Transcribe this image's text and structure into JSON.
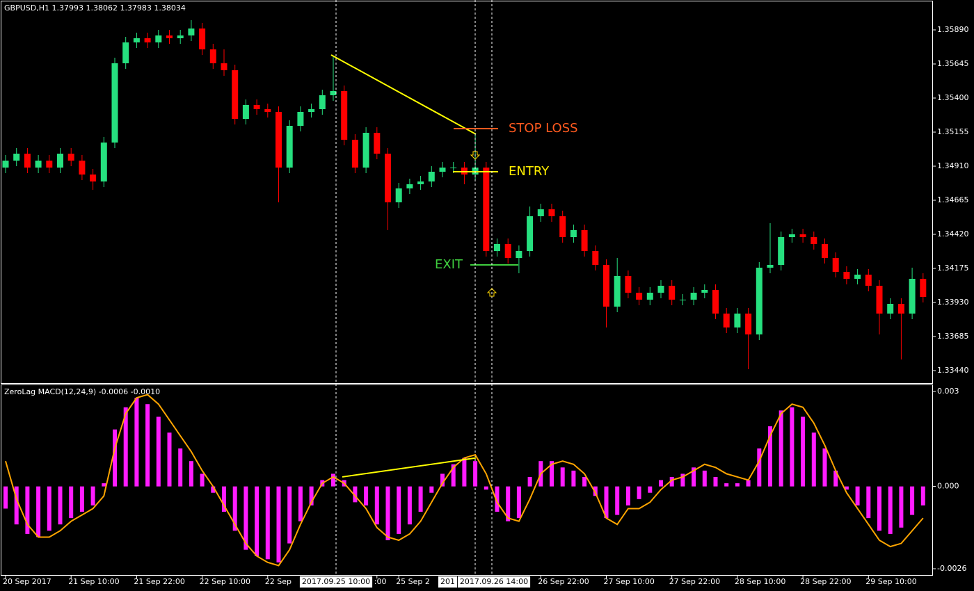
{
  "chart_data": [
    {
      "type": "candlestick",
      "title": "GBPUSD,H1  1.37993 1.38062 1.37983 1.38034",
      "up_color": "#26e07f",
      "down_color": "#ff0000",
      "categories": [
        "20 Sep 2017",
        null,
        null,
        null,
        null,
        null,
        "21 Sep 10:00",
        null,
        null,
        null,
        null,
        null,
        "21 Sep 22:00",
        null,
        null,
        null,
        null,
        null,
        "22 Sep 10:00",
        null,
        null,
        null,
        null,
        null,
        "22 Sep",
        null,
        null,
        null,
        null,
        null,
        null,
        null,
        null,
        null,
        ":00",
        null,
        "25 Sep 2",
        null,
        null,
        null,
        null,
        null,
        null,
        null,
        null,
        null,
        null,
        null,
        null,
        "26 Sep 22:00",
        null,
        null,
        null,
        null,
        null,
        "27 Sep 10:00",
        null,
        null,
        null,
        null,
        null,
        "27 Sep 22:00",
        null,
        null,
        null,
        null,
        null,
        "28 Sep 10:00",
        null,
        null,
        null,
        null,
        null,
        "28 Sep 22:00",
        null,
        null,
        null,
        null,
        null,
        "29 Sep 10:00",
        null,
        null,
        null,
        null,
        null
      ],
      "open": [
        1.349,
        1.3495,
        1.35,
        1.349,
        1.3495,
        1.349,
        1.35,
        1.3495,
        1.3485,
        1.348,
        1.3508,
        1.3565,
        1.358,
        1.3583,
        1.358,
        1.3585,
        1.3583,
        1.3585,
        1.359,
        1.3575,
        1.3565,
        1.356,
        1.3525,
        1.3535,
        1.3532,
        1.353,
        1.349,
        1.352,
        1.353,
        1.3532,
        1.3542,
        1.3545,
        1.351,
        1.349,
        1.3515,
        1.35,
        1.3465,
        1.3475,
        1.3478,
        1.348,
        1.3487,
        1.349,
        1.349,
        1.3485,
        1.349,
        1.343,
        1.3435,
        1.3425,
        1.343,
        1.3455,
        1.346,
        1.3455,
        1.344,
        1.3445,
        1.343,
        1.342,
        1.339,
        1.3412,
        1.34,
        1.3395,
        1.34,
        1.3405,
        1.3395,
        1.3395,
        1.34,
        1.3402,
        1.3385,
        1.3375,
        1.3385,
        1.337,
        1.3418,
        1.342,
        1.344,
        1.3442,
        1.344,
        1.3435,
        1.3425,
        1.3415,
        1.341,
        1.3413,
        1.3405,
        1.3385,
        1.3392,
        1.3385,
        1.341
      ],
      "high": [
        1.3499,
        1.3504,
        1.3504,
        1.3499,
        1.3499,
        1.3504,
        1.3504,
        1.3499,
        1.3489,
        1.3512,
        1.3569,
        1.3584,
        1.3587,
        1.3587,
        1.3589,
        1.3589,
        1.3589,
        1.3596,
        1.3594,
        1.3579,
        1.3575,
        1.3564,
        1.3539,
        1.3539,
        1.3536,
        1.3534,
        1.3524,
        1.3534,
        1.3536,
        1.3546,
        1.357,
        1.3549,
        1.3514,
        1.3519,
        1.3519,
        1.3504,
        1.3479,
        1.3482,
        1.3484,
        1.3491,
        1.3494,
        1.3494,
        1.3494,
        1.3515,
        1.3494,
        1.3439,
        1.3439,
        1.3434,
        1.3462,
        1.3464,
        1.3464,
        1.3459,
        1.3449,
        1.3449,
        1.3434,
        1.3424,
        1.3425,
        1.3416,
        1.3404,
        1.3404,
        1.3409,
        1.3409,
        1.3399,
        1.3404,
        1.3406,
        1.3406,
        1.3389,
        1.3389,
        1.3389,
        1.3422,
        1.345,
        1.3444,
        1.3446,
        1.3446,
        1.3444,
        1.3439,
        1.3429,
        1.3419,
        1.3417,
        1.3417,
        1.3409,
        1.3396,
        1.3396,
        1.3418,
        1.3414
      ],
      "low": [
        1.3486,
        1.3491,
        1.3486,
        1.3486,
        1.3486,
        1.3486,
        1.3491,
        1.3481,
        1.3474,
        1.3476,
        1.3504,
        1.3561,
        1.3576,
        1.3576,
        1.3576,
        1.3579,
        1.3579,
        1.3581,
        1.3571,
        1.3561,
        1.3556,
        1.3521,
        1.3521,
        1.3528,
        1.3526,
        1.3465,
        1.3486,
        1.3516,
        1.3526,
        1.3528,
        1.3538,
        1.3506,
        1.3486,
        1.3486,
        1.3496,
        1.3445,
        1.3461,
        1.3471,
        1.3474,
        1.3476,
        1.3483,
        1.3486,
        1.3478,
        1.3481,
        1.3426,
        1.3426,
        1.3421,
        1.3414,
        1.3426,
        1.3451,
        1.3451,
        1.3436,
        1.3436,
        1.3426,
        1.3416,
        1.3375,
        1.3386,
        1.3396,
        1.3391,
        1.3391,
        1.3396,
        1.3391,
        1.3391,
        1.3391,
        1.3396,
        1.3381,
        1.3371,
        1.3371,
        1.3345,
        1.3366,
        1.3414,
        1.3416,
        1.3436,
        1.3436,
        1.3431,
        1.3421,
        1.3411,
        1.3406,
        1.3406,
        1.3401,
        1.337,
        1.3381,
        1.3352,
        1.3381,
        1.3393
      ],
      "close": [
        1.3495,
        1.35,
        1.349,
        1.3495,
        1.349,
        1.35,
        1.3495,
        1.3485,
        1.348,
        1.3508,
        1.3565,
        1.358,
        1.3583,
        1.358,
        1.3585,
        1.3583,
        1.3585,
        1.359,
        1.3575,
        1.3565,
        1.356,
        1.3525,
        1.3535,
        1.3532,
        1.353,
        1.349,
        1.352,
        1.353,
        1.3532,
        1.3542,
        1.3545,
        1.351,
        1.349,
        1.3515,
        1.35,
        1.3465,
        1.3475,
        1.3478,
        1.348,
        1.3487,
        1.349,
        1.349,
        1.3485,
        1.349,
        1.343,
        1.3435,
        1.3425,
        1.343,
        1.3455,
        1.346,
        1.3455,
        1.344,
        1.3445,
        1.343,
        1.342,
        1.339,
        1.3412,
        1.34,
        1.3395,
        1.34,
        1.3405,
        1.3395,
        1.3395,
        1.34,
        1.3402,
        1.3385,
        1.3375,
        1.3385,
        1.337,
        1.3418,
        1.342,
        1.344,
        1.3442,
        1.344,
        1.3435,
        1.3425,
        1.3415,
        1.341,
        1.3413,
        1.3405,
        1.3385,
        1.3392,
        1.3385,
        1.341,
        1.3397
      ],
      "ylim": [
        1.3335,
        1.36105
      ],
      "yticks": [
        {
          "value": 1.3589,
          "label": "1.35890"
        },
        1.35645,
        {
          "value": 1.354,
          "label": "1.35400"
        },
        1.35155,
        {
          "value": 1.3491,
          "label": "1.34910"
        },
        1.34665,
        {
          "value": 1.3442,
          "label": "1.34420"
        },
        1.34175,
        {
          "value": 1.3393,
          "label": "1.33930"
        },
        1.33685,
        {
          "value": 1.3344,
          "label": "1.33440"
        }
      ],
      "levels": [
        {
          "label": "STOP LOSS",
          "value": 1.3518,
          "color": "#ff5a1f"
        },
        {
          "label": "ENTRY",
          "value": 1.3487,
          "color": "#ffee00"
        },
        {
          "label": "EXIT",
          "value": 1.342,
          "color": "#3fcf3f"
        }
      ],
      "trendline": {
        "values": [
          1.3571,
          1.3514
        ],
        "color": "#ffff00"
      },
      "crosshairs": [
        {
          "label": "2017.09.25 10:00"
        },
        {
          "label": "201"
        },
        {
          "label": "2017.09.26 14:00"
        }
      ]
    },
    {
      "type": "combo",
      "title": "ZeroLag MACD(12,24,9) -0.0006 -0.0010",
      "series": [
        {
          "type": "bar",
          "color": "#ff1cff",
          "values": [
            -0.0007,
            -0.0012,
            -0.0015,
            -0.0016,
            -0.0014,
            -0.0012,
            -0.001,
            -0.0008,
            -0.0006,
            0.0001,
            0.0018,
            0.0025,
            0.0028,
            0.0026,
            0.0022,
            0.0017,
            0.0012,
            0.0008,
            0.0004,
            -0.0002,
            -0.0008,
            -0.0014,
            -0.002,
            -0.0022,
            -0.0023,
            -0.0024,
            -0.0018,
            -0.0011,
            -0.0006,
            0.0002,
            0.0004,
            0.0002,
            -0.0005,
            -0.0006,
            -0.0012,
            -0.0017,
            -0.0015,
            -0.0012,
            -0.0008,
            -0.0002,
            0.0004,
            0.0007,
            0.0009,
            0.0008,
            -0.0001,
            -0.0008,
            -0.0011,
            -0.001,
            0.0003,
            0.0008,
            0.0008,
            0.0006,
            0.0005,
            0.0003,
            -0.0003,
            -0.001,
            -0.0009,
            -0.0006,
            -0.0004,
            -0.0002,
            0.0002,
            0.0003,
            0.0004,
            0.0006,
            0.0005,
            0.0003,
            0.0001,
            0.0001,
            0.0002,
            0.0012,
            0.0019,
            0.0024,
            0.0025,
            0.0022,
            0.0017,
            0.0012,
            0.0005,
            -0.0001,
            -0.0006,
            -0.001,
            -0.0014,
            -0.0015,
            -0.0013,
            -0.0009,
            -0.0006
          ]
        },
        {
          "type": "line",
          "color": "#ffa500",
          "values": [
            0.0008,
            -0.0004,
            -0.0012,
            -0.0016,
            -0.0016,
            -0.0014,
            -0.0011,
            -0.0009,
            -0.0007,
            -0.0003,
            0.0012,
            0.0023,
            0.0028,
            0.0029,
            0.0026,
            0.0021,
            0.0016,
            0.0011,
            0.0005,
            0,
            -0.0006,
            -0.0012,
            -0.0018,
            -0.0022,
            -0.0024,
            -0.0025,
            -0.002,
            -0.0012,
            -0.0005,
            0.0001,
            0.0003,
            0.0001,
            -0.0003,
            -0.0007,
            -0.0013,
            -0.0016,
            -0.0017,
            -0.0015,
            -0.0011,
            -0.0005,
            0.0001,
            0.0006,
            0.0009,
            0.001,
            0.0004,
            -0.0005,
            -0.001,
            -0.0011,
            -0.0004,
            0.0004,
            0.0007,
            0.0008,
            0.0007,
            0.0004,
            -0.0002,
            -0.001,
            -0.0012,
            -0.0007,
            -0.0007,
            -0.0005,
            -0.0001,
            0.0002,
            0.0003,
            0.0005,
            0.0007,
            0.0006,
            0.0004,
            0.0003,
            0.0002,
            0.0008,
            0.0016,
            0.0023,
            0.0026,
            0.0025,
            0.002,
            0.0013,
            0.0005,
            -0.0002,
            -0.0007,
            -0.0012,
            -0.0017,
            -0.0019,
            -0.0018,
            -0.0014,
            -0.001
          ]
        }
      ],
      "ylim": [
        -0.00282,
        0.00322
      ],
      "yticks": [
        0.003,
        {
          "value": 0,
          "label": "0.000"
        },
        -0.0026
      ],
      "trendline": {
        "values": [
          0.0003,
          0.0009
        ],
        "color": "#ffff00"
      }
    }
  ]
}
